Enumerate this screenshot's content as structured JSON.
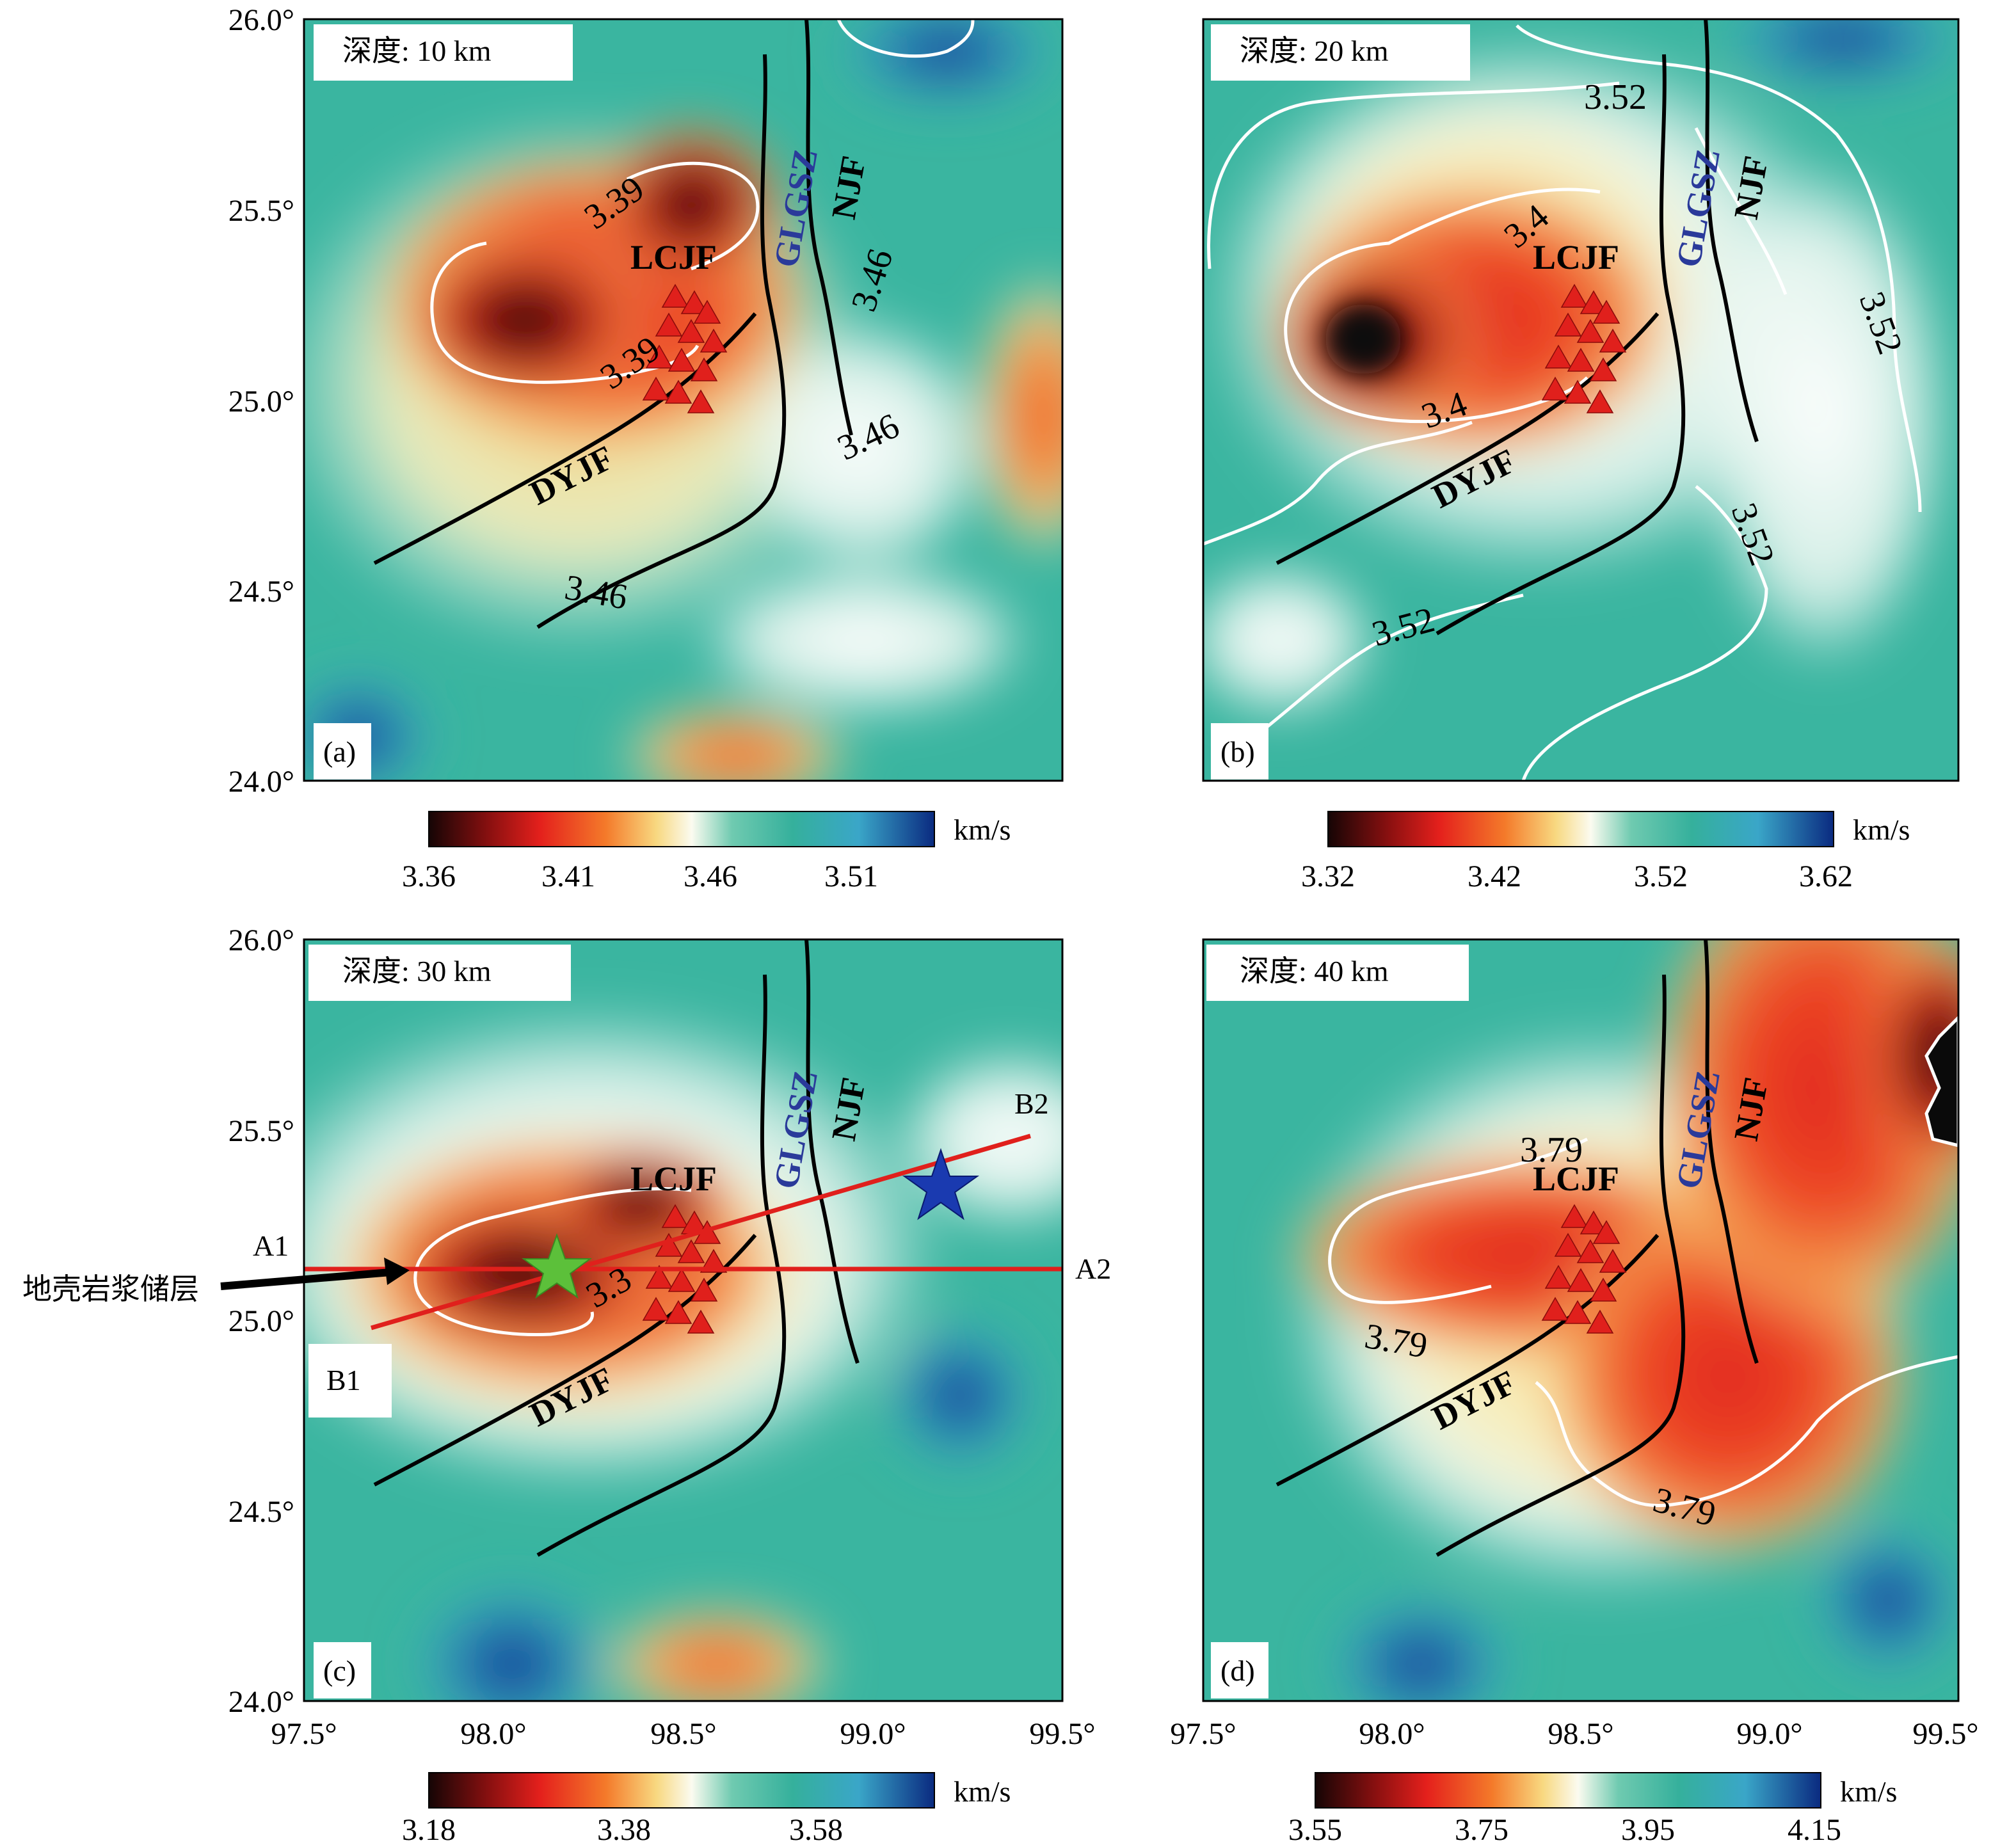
{
  "panels": [
    {
      "id": "a",
      "depth_label": "深度: 10 km",
      "tag": "(a)",
      "contour_labels": [
        "3.39",
        "3.39",
        "3.46",
        "3.46",
        "3.46"
      ],
      "colorbar_ticks": [
        "3.36",
        "3.41",
        "3.46",
        "3.51"
      ],
      "unit": "km/s"
    },
    {
      "id": "b",
      "depth_label": "深度: 20 km",
      "tag": "(b)",
      "contour_labels": [
        "3.52",
        "3.4",
        "3.4",
        "3.52",
        "3.52",
        "3.52"
      ],
      "colorbar_ticks": [
        "3.32",
        "3.42",
        "3.52",
        "3.62"
      ],
      "unit": "km/s"
    },
    {
      "id": "c",
      "depth_label": "深度: 30 km",
      "tag": "(c)",
      "contour_labels": [
        "3.3"
      ],
      "colorbar_ticks": [
        "3.18",
        "3.38",
        "3.58"
      ],
      "unit": "km/s",
      "profile_labels": [
        "A1",
        "A2",
        "B1",
        "B2"
      ],
      "annotation": "地壳岩浆储层"
    },
    {
      "id": "d",
      "depth_label": "深度: 40 km",
      "tag": "(d)",
      "contour_labels": [
        "3.79",
        "3.79",
        "3.79"
      ],
      "colorbar_ticks": [
        "3.55",
        "3.75",
        "3.95",
        "4.15"
      ],
      "unit": "km/s"
    }
  ],
  "faults": {
    "lcjf": "LCJF",
    "glgsz": "GLGSZ",
    "njf": "NJF",
    "dyjf": "DYJF"
  },
  "axes": {
    "y_ticks": [
      "26.0°",
      "25.5°",
      "25.0°",
      "24.5°",
      "24.0°"
    ],
    "x_ticks": [
      "97.5°",
      "98.0°",
      "98.5°",
      "99.0°",
      "99.5°"
    ]
  },
  "colors": {
    "low_velocity_dark": "#1a0a0a",
    "low_velocity": "#e02020",
    "mid_velocity": "#f8f0b0",
    "background_velocity": "#3ab5a0",
    "high_velocity": "#0a3a8a",
    "contour": "#ffffff",
    "fault": "#000000",
    "profile_line": "#e02020",
    "green_star": "#5cc03a",
    "blue_star": "#1a3ab0",
    "triangle": "#e02020"
  }
}
